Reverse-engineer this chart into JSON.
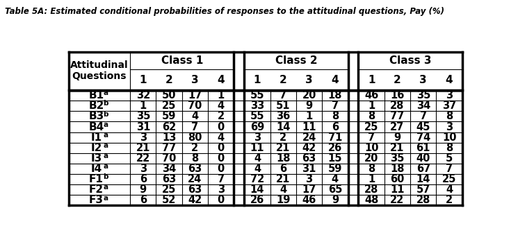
{
  "title": "Table 5A: Estimated conditional probabilities of responses to the attitudinal questions, Pay (%)",
  "row_labels_plain": [
    "B1",
    "B2",
    "B3",
    "B4",
    "I1",
    "I2",
    "I3",
    "I4",
    "F1",
    "F2",
    "F3"
  ],
  "row_superscripts": [
    "a",
    "b",
    "b",
    "a",
    "a",
    "a",
    "a",
    "a",
    "b",
    "a",
    "a"
  ],
  "data": [
    [
      32,
      50,
      17,
      1,
      55,
      7,
      20,
      18,
      46,
      16,
      35,
      3
    ],
    [
      1,
      25,
      70,
      4,
      33,
      51,
      9,
      7,
      1,
      28,
      34,
      37
    ],
    [
      35,
      59,
      4,
      2,
      55,
      36,
      1,
      8,
      8,
      77,
      7,
      8
    ],
    [
      31,
      62,
      7,
      0,
      69,
      14,
      11,
      6,
      25,
      27,
      45,
      3
    ],
    [
      3,
      13,
      80,
      4,
      3,
      2,
      24,
      71,
      7,
      9,
      74,
      10
    ],
    [
      21,
      77,
      2,
      0,
      11,
      21,
      42,
      26,
      10,
      21,
      61,
      8
    ],
    [
      22,
      70,
      8,
      0,
      4,
      18,
      63,
      15,
      20,
      35,
      40,
      5
    ],
    [
      3,
      34,
      63,
      0,
      4,
      6,
      31,
      59,
      8,
      18,
      67,
      7
    ],
    [
      6,
      63,
      24,
      7,
      72,
      21,
      3,
      4,
      1,
      60,
      14,
      25
    ],
    [
      9,
      25,
      63,
      3,
      14,
      4,
      17,
      65,
      28,
      11,
      57,
      4
    ],
    [
      6,
      52,
      42,
      0,
      26,
      19,
      46,
      9,
      48,
      22,
      28,
      2
    ]
  ],
  "background_color": "#ffffff",
  "font_size_title": 8.5,
  "font_size_header": 11,
  "font_size_data": 10.5,
  "font_size_super": 7.5,
  "lw_thick": 2.5,
  "lw_thin": 0.8
}
